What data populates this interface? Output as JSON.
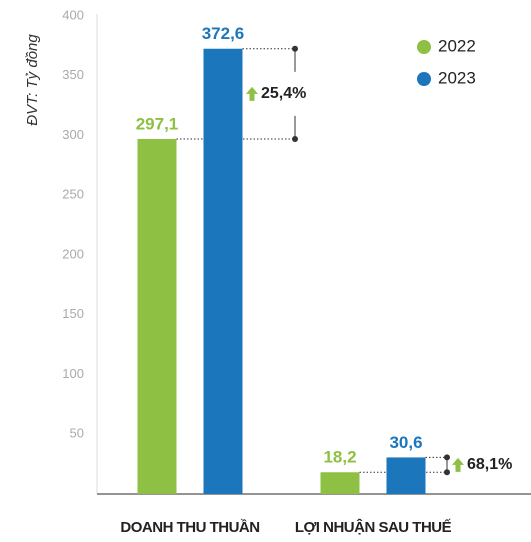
{
  "chart_data": {
    "type": "bar",
    "y_axis_label": "ĐVT: Tỷ đồng",
    "categories": [
      "DOANH THU THUẦN",
      "LỢI NHUẬN SAU THUẾ"
    ],
    "series": [
      {
        "name": "2022",
        "color": "#8dc043",
        "values": [
          297.1,
          18.2
        ],
        "value_labels": [
          "297,1",
          "18,2"
        ]
      },
      {
        "name": "2023",
        "color": "#1b76bc",
        "values": [
          372.6,
          30.6
        ],
        "value_labels": [
          "372,6",
          "30,6"
        ]
      }
    ],
    "annotations": [
      "25,4%",
      "68,1%"
    ],
    "ylim": [
      0,
      400
    ],
    "yticks": [
      50,
      100,
      150,
      200,
      250,
      300,
      350,
      400
    ],
    "grid": false,
    "legend": "top-right"
  }
}
